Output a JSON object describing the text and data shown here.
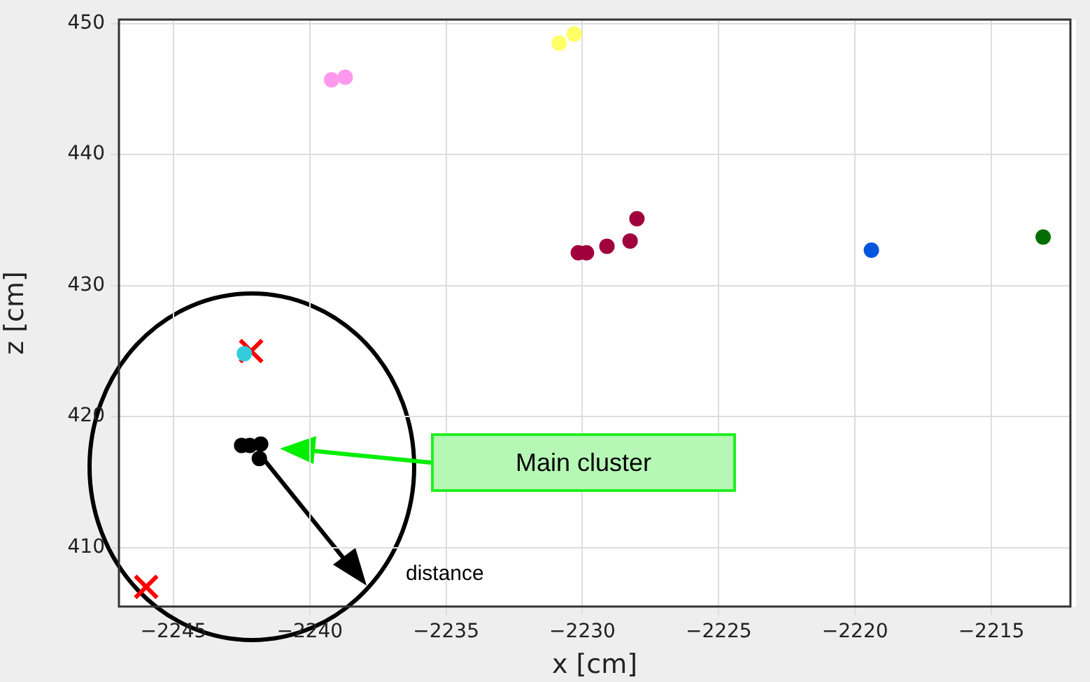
{
  "chart_data": {
    "type": "scatter",
    "xlabel": "x [cm]",
    "ylabel": "z [cm]",
    "xlim": [
      -2247,
      -2212.1
    ],
    "ylim": [
      405.5,
      450.3
    ],
    "xticks": [
      -2245,
      -2240,
      -2235,
      -2230,
      -2225,
      -2220,
      -2215
    ],
    "yticks": [
      410,
      420,
      430,
      440,
      450
    ],
    "grid": true,
    "legend": false,
    "marker": "circle",
    "annotations": [
      "Main cluster",
      "distance"
    ],
    "series": [
      {
        "color": "#ff99ee",
        "x": [
          -2239.2,
          -2238.7
        ],
        "values": [
          445.7,
          445.9
        ]
      },
      {
        "color": "#ffff66",
        "x": [
          -2230.85,
          -2230.3
        ],
        "values": [
          448.5,
          449.2
        ]
      },
      {
        "color": "#a0003c",
        "x": [
          -2230.15,
          -2229.85,
          -2229.1,
          -2228.25,
          -2228.0
        ],
        "values": [
          432.5,
          432.5,
          433.0,
          433.4,
          435.1
        ]
      },
      {
        "color": "#0055dd",
        "x": [
          -2219.4
        ],
        "values": [
          432.7
        ]
      },
      {
        "color": "#006e00",
        "x": [
          -2213.1
        ],
        "values": [
          433.7
        ]
      },
      {
        "color": "#33ccdd",
        "x": [
          -2242.4
        ],
        "values": [
          424.8
        ]
      },
      {
        "color": "#000000",
        "x": [
          -2242.5,
          -2242.2,
          -2241.8,
          -2241.85
        ],
        "values": [
          417.8,
          417.8,
          417.9,
          416.8
        ]
      },
      {
        "color": "#ff0000",
        "marker": "cross",
        "x": [
          -2242.15,
          -2246.0
        ],
        "values": [
          425.0,
          407.0
        ]
      }
    ]
  }
}
